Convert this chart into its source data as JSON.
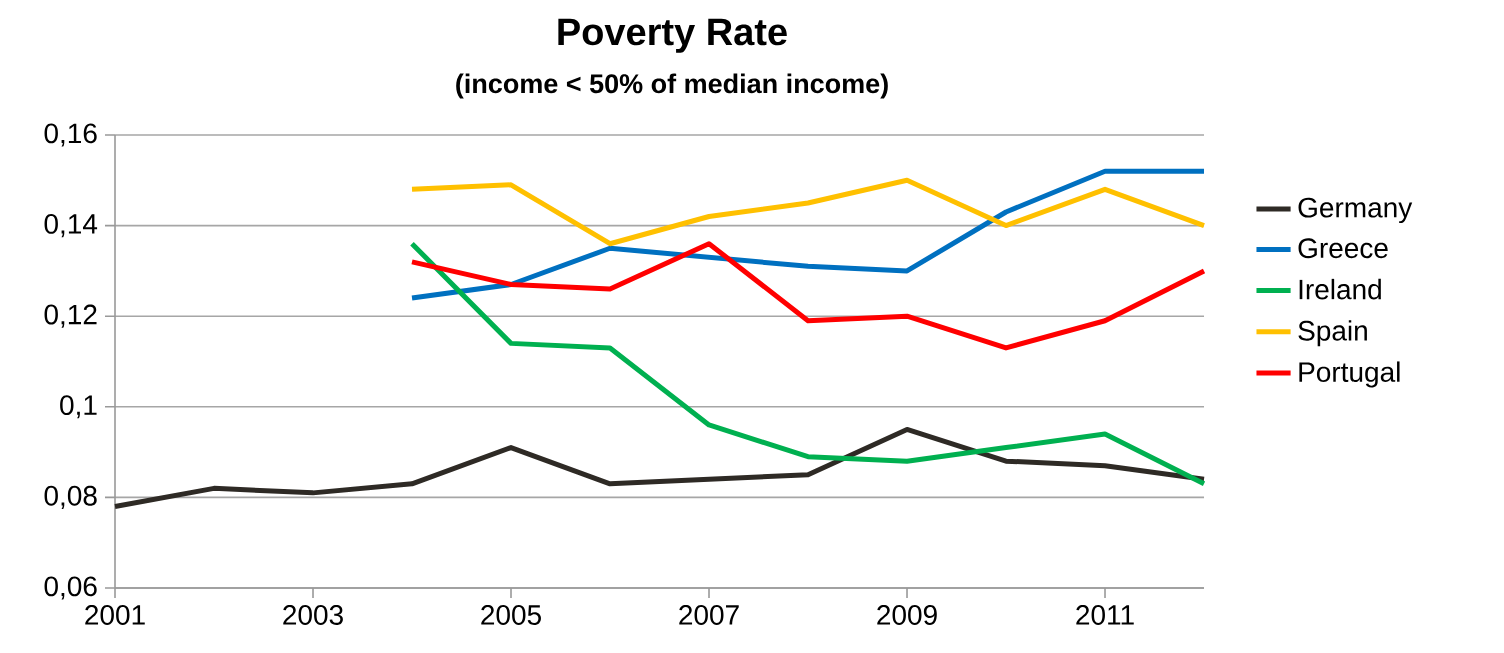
{
  "chart_data": {
    "type": "line",
    "title": "Poverty Rate",
    "subtitle": "(income < 50% of median income)",
    "x": [
      2001,
      2002,
      2003,
      2004,
      2005,
      2006,
      2007,
      2008,
      2009,
      2010,
      2011,
      2012
    ],
    "series": [
      {
        "name": "Germany",
        "color": "#2e2a25",
        "values": [
          0.078,
          0.082,
          0.081,
          0.083,
          0.091,
          0.083,
          0.084,
          0.085,
          0.095,
          0.088,
          0.087,
          0.084
        ]
      },
      {
        "name": "Greece",
        "color": "#0070c0",
        "values": [
          null,
          null,
          null,
          0.124,
          0.127,
          0.135,
          0.133,
          0.131,
          0.13,
          0.143,
          0.152,
          0.152
        ]
      },
      {
        "name": "Ireland",
        "color": "#00b050",
        "values": [
          null,
          null,
          null,
          0.136,
          0.114,
          0.113,
          0.096,
          0.089,
          0.088,
          0.091,
          0.094,
          0.083
        ]
      },
      {
        "name": "Spain",
        "color": "#ffc000",
        "values": [
          null,
          null,
          null,
          0.148,
          0.149,
          0.136,
          0.142,
          0.145,
          0.15,
          0.14,
          0.148,
          0.14
        ]
      },
      {
        "name": "Portugal",
        "color": "#ff0000",
        "values": [
          null,
          null,
          null,
          0.132,
          0.127,
          0.126,
          0.136,
          0.119,
          0.12,
          0.113,
          0.119,
          0.13
        ]
      }
    ],
    "xlim": [
      2001,
      2012
    ],
    "xticks": [
      2001,
      2003,
      2005,
      2007,
      2009,
      2011
    ],
    "ylim": [
      0.06,
      0.16
    ],
    "yticks": [
      {
        "value": 0.06,
        "label": "0,06"
      },
      {
        "value": 0.08,
        "label": "0,08"
      },
      {
        "value": 0.1,
        "label": "0,1"
      },
      {
        "value": 0.12,
        "label": "0,12"
      },
      {
        "value": 0.14,
        "label": "0,14"
      },
      {
        "value": 0.16,
        "label": "0,16"
      }
    ],
    "grid": "y",
    "legend": "right"
  }
}
